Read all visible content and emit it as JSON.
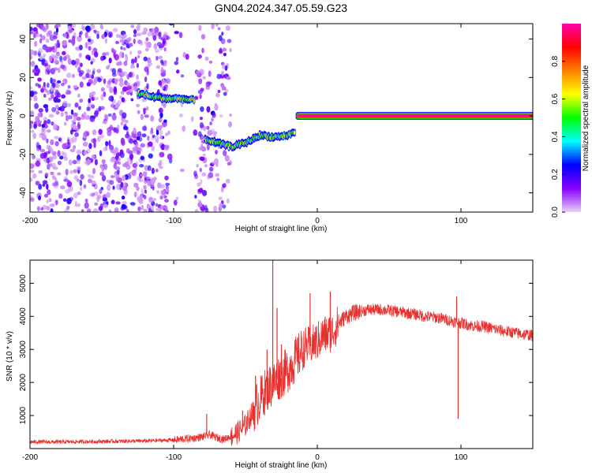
{
  "title": "GN04.2024.347.05.59.G23",
  "chart_data": [
    {
      "type": "heatmap",
      "xlabel": "Height of straight line (km)",
      "ylabel": "Frequency (Hz)",
      "xlim": [
        -200,
        150
      ],
      "ylim": [
        -50,
        48
      ],
      "xticks": [
        -200,
        -100,
        0,
        100
      ],
      "yticks": [
        -40,
        -20,
        0,
        20,
        40
      ],
      "colorbar": {
        "label": "Normalized spectral amplitude",
        "range": [
          0,
          1
        ],
        "ticks": [
          0.0,
          0.2,
          0.4,
          0.6,
          0.8
        ],
        "colormap": [
          "#e8d0f2",
          "#8800ff",
          "#0000ff",
          "#00ffff",
          "#00ff00",
          "#ffff00",
          "#ff8000",
          "#ff0000",
          "#ff00aa"
        ]
      },
      "features": [
        {
          "name": "noise",
          "x_range": [
            -200,
            -60
          ],
          "y_range": [
            -50,
            48
          ],
          "amplitude": 0.15
        },
        {
          "name": "track",
          "points": [
            [
              -125,
              12
            ],
            [
              -115,
              10
            ],
            [
              -105,
              9
            ],
            [
              -95,
              9
            ],
            [
              -85,
              8
            ]
          ],
          "amplitude": 0.55
        },
        {
          "name": "track",
          "points": [
            [
              -78,
              -12
            ],
            [
              -70,
              -14
            ],
            [
              -60,
              -16
            ],
            [
              -50,
              -14
            ],
            [
              -40,
              -10
            ],
            [
              -30,
              -11
            ],
            [
              -20,
              -10
            ],
            [
              -15,
              -8
            ]
          ],
          "amplitude": 0.5
        },
        {
          "name": "track",
          "points": [
            [
              -14,
              0
            ],
            [
              150,
              0
            ]
          ],
          "amplitude": 0.95
        }
      ]
    },
    {
      "type": "line",
      "xlabel": "Height of straight line (km)",
      "ylabel": "SNR (10 * v/v)",
      "xlim": [
        -200,
        150
      ],
      "ylim": [
        0,
        5700
      ],
      "xticks": [
        -200,
        -100,
        0,
        100
      ],
      "yticks": [
        1000,
        2000,
        3000,
        4000,
        5000
      ],
      "series": [
        {
          "color": "#e8302e",
          "x": [
            -200,
            -180,
            -160,
            -140,
            -120,
            -100,
            -90,
            -80,
            -75,
            -70,
            -65,
            -60,
            -55,
            -50,
            -45,
            -40,
            -35,
            -30,
            -28,
            -25,
            -20,
            -15,
            -10,
            -8,
            -5,
            -2,
            0,
            5,
            10,
            15,
            20,
            25,
            30,
            35,
            40,
            45,
            50,
            55,
            60,
            65,
            70,
            75,
            80,
            85,
            90,
            95,
            100,
            105,
            110,
            115,
            120,
            125,
            130,
            135,
            140,
            145,
            150
          ],
          "values": [
            200,
            200,
            210,
            220,
            230,
            260,
            300,
            350,
            420,
            330,
            280,
            380,
            500,
            700,
            1100,
            1500,
            1800,
            2000,
            2100,
            2200,
            2400,
            2700,
            3000,
            3100,
            3100,
            3200,
            3250,
            3450,
            3500,
            3800,
            4000,
            4100,
            4150,
            4200,
            4200,
            4200,
            4180,
            4150,
            4120,
            4080,
            4050,
            4000,
            3980,
            3950,
            3900,
            3850,
            3800,
            3750,
            3700,
            3700,
            3650,
            3600,
            3550,
            3520,
            3480,
            3450,
            3420
          ],
          "spikes": [
            [
              -77,
              1050
            ],
            [
              -52,
              1150
            ],
            [
              -43,
              2200
            ],
            [
              -35,
              3000
            ],
            [
              -31,
              5700
            ],
            [
              -28,
              4250
            ],
            [
              -25,
              3150
            ],
            [
              -5,
              4700
            ],
            [
              9,
              4750
            ],
            [
              97,
              4600
            ],
            [
              98,
              900
            ]
          ]
        }
      ]
    }
  ]
}
